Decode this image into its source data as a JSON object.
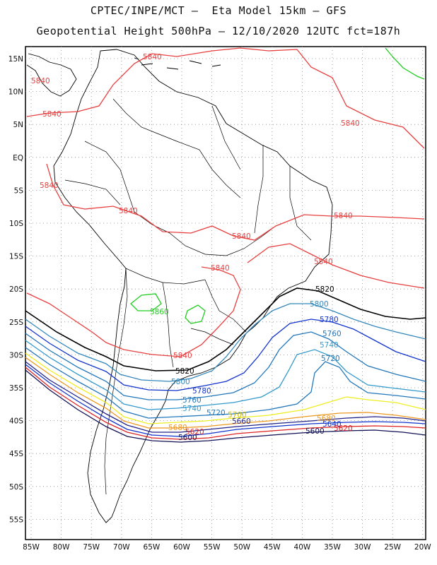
{
  "header": {
    "line1": "CPTEC/INPE/MCT –  Eta Model 15km – GFS",
    "line2": "Geopotential Height 500hPa – 12/10/2020 12UTC fct=187h"
  },
  "axes": {
    "lat_labels": [
      "15N",
      "10N",
      "5N",
      "EQ",
      "5S",
      "10S",
      "15S",
      "20S",
      "25S",
      "30S",
      "35S",
      "40S",
      "45S",
      "50S",
      "55S"
    ],
    "lon_labels": [
      "85W",
      "80W",
      "75W",
      "70W",
      "65W",
      "60W",
      "55W",
      "50W",
      "45W",
      "40W",
      "35W",
      "30W",
      "25W",
      "20W"
    ]
  },
  "contour_labels": {
    "c5840": "5840",
    "c5820": "5820",
    "c5800": "5800",
    "c5780": "5780",
    "c5760": "5760",
    "c5740": "5740",
    "c5720": "5720",
    "c5700": "5700",
    "c5680": "5680",
    "c5660": "5660",
    "c5640": "5640",
    "c5620": "5620",
    "c5600": "5600",
    "c5860": "5860"
  },
  "colors": {
    "c5860": "#22cc22",
    "c5840": "#e84040",
    "c5820": "#000000",
    "c5800": "#3388bb",
    "c5780": "#1133cc",
    "c5760": "#2277bb",
    "c5740": "#3399cc",
    "c5720": "#2277bb",
    "c5700": "#eeee22",
    "c5680": "#ee9922",
    "c5660": "#222288",
    "c5640": "#1133cc",
    "c5620": "#dd2222",
    "c5600": "#111155"
  }
}
